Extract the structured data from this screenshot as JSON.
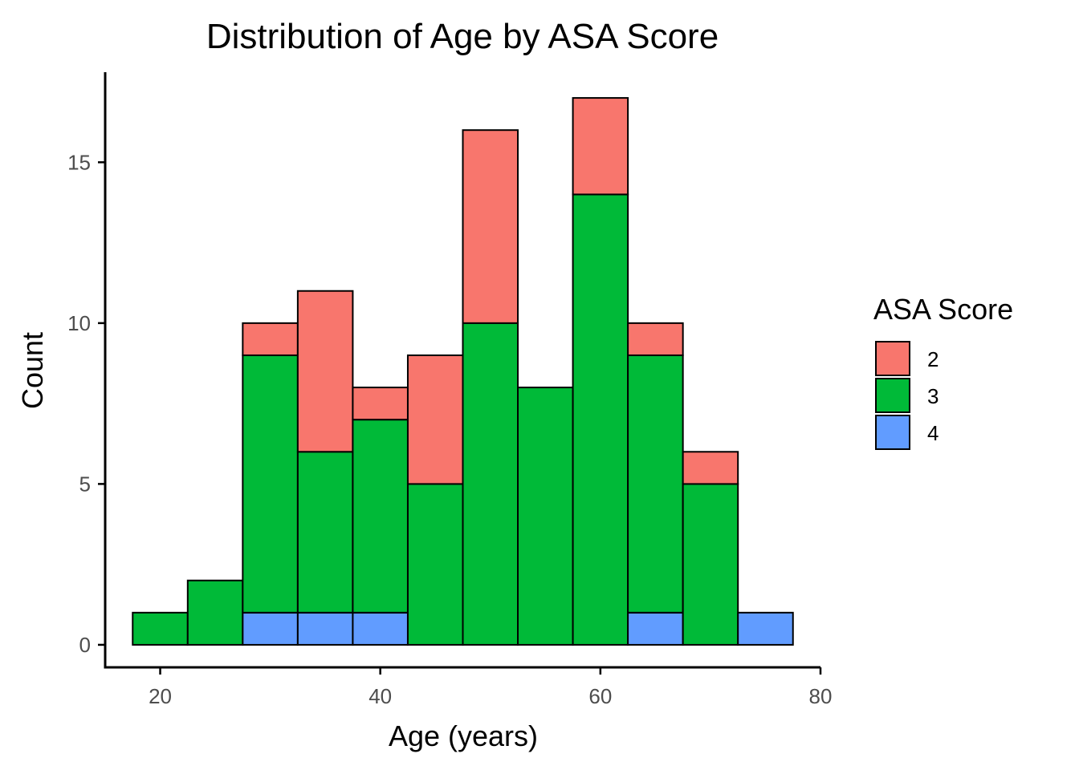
{
  "chart_data": {
    "type": "bar",
    "title": "Distribution of Age by ASA Score",
    "xlabel": "Age (years)",
    "ylabel": "Count",
    "xlim": [
      15,
      80
    ],
    "ylim": [
      -0.7,
      17.8
    ],
    "x_ticks": [
      20,
      40,
      60,
      80
    ],
    "y_ticks": [
      0,
      5,
      10,
      15
    ],
    "bin_width": 5,
    "bins": [
      20,
      25,
      30,
      35,
      40,
      45,
      50,
      55,
      60,
      65,
      70,
      75
    ],
    "stack_order": [
      "4",
      "3",
      "2"
    ],
    "series": [
      {
        "name": "2",
        "color": "#F8766D",
        "values": [
          0,
          0,
          1,
          5,
          1,
          4,
          6,
          0,
          3,
          1,
          1,
          0
        ]
      },
      {
        "name": "3",
        "color": "#00BA38",
        "values": [
          1,
          2,
          8,
          5,
          6,
          5,
          10,
          8,
          14,
          8,
          5,
          0
        ]
      },
      {
        "name": "4",
        "color": "#619CFF",
        "values": [
          0,
          0,
          1,
          1,
          1,
          0,
          0,
          0,
          0,
          1,
          0,
          1
        ]
      }
    ],
    "legend": {
      "title": "ASA Score",
      "position": "right"
    },
    "grid": false
  }
}
